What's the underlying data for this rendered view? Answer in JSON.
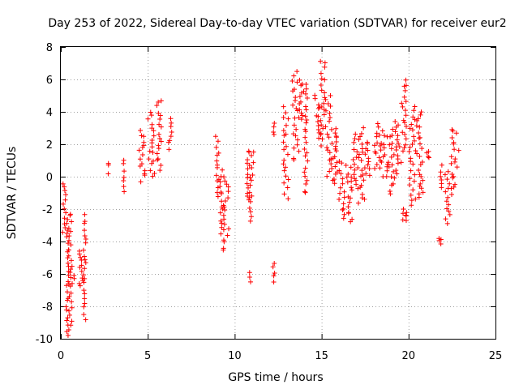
{
  "chart_data": {
    "type": "scatter",
    "title": "Day 253 of 2022, Sidereal Day-to-day VTEC variation (SDTVAR) for receiver eur2",
    "xlabel": "GPS time / hours",
    "ylabel": "SDTVAR / TECUs",
    "xlim": [
      0,
      25
    ],
    "ylim": [
      -10,
      8
    ],
    "xticks": [
      0,
      5,
      10,
      15,
      20,
      25
    ],
    "yticks": [
      -10,
      -8,
      -6,
      -4,
      -2,
      0,
      2,
      4,
      6,
      8
    ],
    "xtick_labels": [
      "0",
      "5",
      "10",
      "15",
      "20",
      "25"
    ],
    "ytick_labels": [
      "-10",
      "-8",
      "-6",
      "-4",
      "-2",
      "0",
      "2",
      "4",
      "6",
      "8"
    ],
    "grid": true,
    "marker": "+",
    "color": "#ff0000",
    "segments": [
      {
        "x0": 0.1,
        "x1": 0.3,
        "ymin": -3.4,
        "ymax": -0.4
      },
      {
        "x0": 0.3,
        "x1": 0.45,
        "ymin": -9.8,
        "ymax": -2.6
      },
      {
        "x0": 0.45,
        "x1": 0.65,
        "ymin": -9.5,
        "ymax": -2.2
      },
      {
        "x0": 0.65,
        "x1": 0.8,
        "ymin": -6.6,
        "ymax": -6.2
      },
      {
        "x0": 1.0,
        "x1": 1.3,
        "ymin": -6.8,
        "ymax": -4.6
      },
      {
        "x0": 1.3,
        "x1": 1.45,
        "ymin": -8.7,
        "ymax": -2.4
      },
      {
        "x0": 2.7,
        "x1": 2.75,
        "ymin": 0.3,
        "ymax": 0.9
      },
      {
        "x0": 3.6,
        "x1": 3.65,
        "ymin": -1.0,
        "ymax": 1.1
      },
      {
        "x0": 4.5,
        "x1": 4.9,
        "ymin": -0.2,
        "ymax": 2.8
      },
      {
        "x0": 5.0,
        "x1": 5.4,
        "ymin": 0.0,
        "ymax": 4.0
      },
      {
        "x0": 5.5,
        "x1": 5.8,
        "ymin": 0.4,
        "ymax": 4.8
      },
      {
        "x0": 6.2,
        "x1": 6.4,
        "ymin": 1.8,
        "ymax": 3.5
      },
      {
        "x0": 8.9,
        "x1": 9.1,
        "ymin": -1.2,
        "ymax": 2.4
      },
      {
        "x0": 9.15,
        "x1": 9.3,
        "ymin": -3.5,
        "ymax": 0.3
      },
      {
        "x0": 9.3,
        "x1": 9.7,
        "ymin": -4.6,
        "ymax": 0.0
      },
      {
        "x0": 10.7,
        "x1": 10.85,
        "ymin": -1.5,
        "ymax": 1.7
      },
      {
        "x0": 10.85,
        "x1": 11.1,
        "ymin": -2.7,
        "ymax": 1.5
      },
      {
        "x0": 10.85,
        "x1": 10.95,
        "ymin": -6.4,
        "ymax": -6.0
      },
      {
        "x0": 12.2,
        "x1": 12.3,
        "ymin": -6.4,
        "ymax": -5.3
      },
      {
        "x0": 12.2,
        "x1": 12.3,
        "ymin": 2.5,
        "ymax": 3.3
      },
      {
        "x0": 12.8,
        "x1": 13.1,
        "ymin": -1.3,
        "ymax": 4.3
      },
      {
        "x0": 13.3,
        "x1": 13.7,
        "ymin": 1.0,
        "ymax": 6.5
      },
      {
        "x0": 13.7,
        "x1": 14.0,
        "ymin": 3.5,
        "ymax": 6.0
      },
      {
        "x0": 14.0,
        "x1": 14.2,
        "ymin": -1.1,
        "ymax": 5.6
      },
      {
        "x0": 14.6,
        "x1": 14.9,
        "ymin": 2.5,
        "ymax": 5.0
      },
      {
        "x0": 14.9,
        "x1": 15.2,
        "ymin": 2.0,
        "ymax": 7.2
      },
      {
        "x0": 15.2,
        "x1": 15.6,
        "ymin": 0.0,
        "ymax": 5.0
      },
      {
        "x0": 15.6,
        "x1": 16.0,
        "ymin": -0.5,
        "ymax": 3.0
      },
      {
        "x0": 16.0,
        "x1": 16.5,
        "ymin": -2.5,
        "ymax": 1.0
      },
      {
        "x0": 16.5,
        "x1": 16.8,
        "ymin": -2.8,
        "ymax": 0.5
      },
      {
        "x0": 16.8,
        "x1": 17.1,
        "ymin": -0.8,
        "ymax": 2.5
      },
      {
        "x0": 17.1,
        "x1": 17.5,
        "ymin": -1.7,
        "ymax": 3.0
      },
      {
        "x0": 17.5,
        "x1": 17.8,
        "ymin": 0.0,
        "ymax": 2.2
      },
      {
        "x0": 18.0,
        "x1": 18.4,
        "ymin": 0.4,
        "ymax": 3.2
      },
      {
        "x0": 18.4,
        "x1": 18.8,
        "ymin": -0.1,
        "ymax": 2.8
      },
      {
        "x0": 18.8,
        "x1": 19.2,
        "ymin": -1.0,
        "ymax": 2.8
      },
      {
        "x0": 19.2,
        "x1": 19.6,
        "ymin": 0.3,
        "ymax": 3.4
      },
      {
        "x0": 19.6,
        "x1": 19.9,
        "ymin": 1.5,
        "ymax": 6.0
      },
      {
        "x0": 19.6,
        "x1": 19.9,
        "ymin": -2.8,
        "ymax": -2.0
      },
      {
        "x0": 20.0,
        "x1": 20.4,
        "ymin": -1.8,
        "ymax": 4.3
      },
      {
        "x0": 20.4,
        "x1": 20.8,
        "ymin": 0.5,
        "ymax": 4.1
      },
      {
        "x0": 20.6,
        "x1": 20.9,
        "ymin": -1.2,
        "ymax": 0.2
      },
      {
        "x0": 21.0,
        "x1": 21.2,
        "ymin": 1.2,
        "ymax": 1.5
      },
      {
        "x0": 21.7,
        "x1": 21.9,
        "ymin": -4.2,
        "ymax": -3.8
      },
      {
        "x0": 21.8,
        "x1": 21.95,
        "ymin": -0.7,
        "ymax": 0.6
      },
      {
        "x0": 22.1,
        "x1": 22.4,
        "ymin": -2.9,
        "ymax": 0.3
      },
      {
        "x0": 22.4,
        "x1": 22.9,
        "ymin": -1.0,
        "ymax": 3.0
      }
    ]
  }
}
